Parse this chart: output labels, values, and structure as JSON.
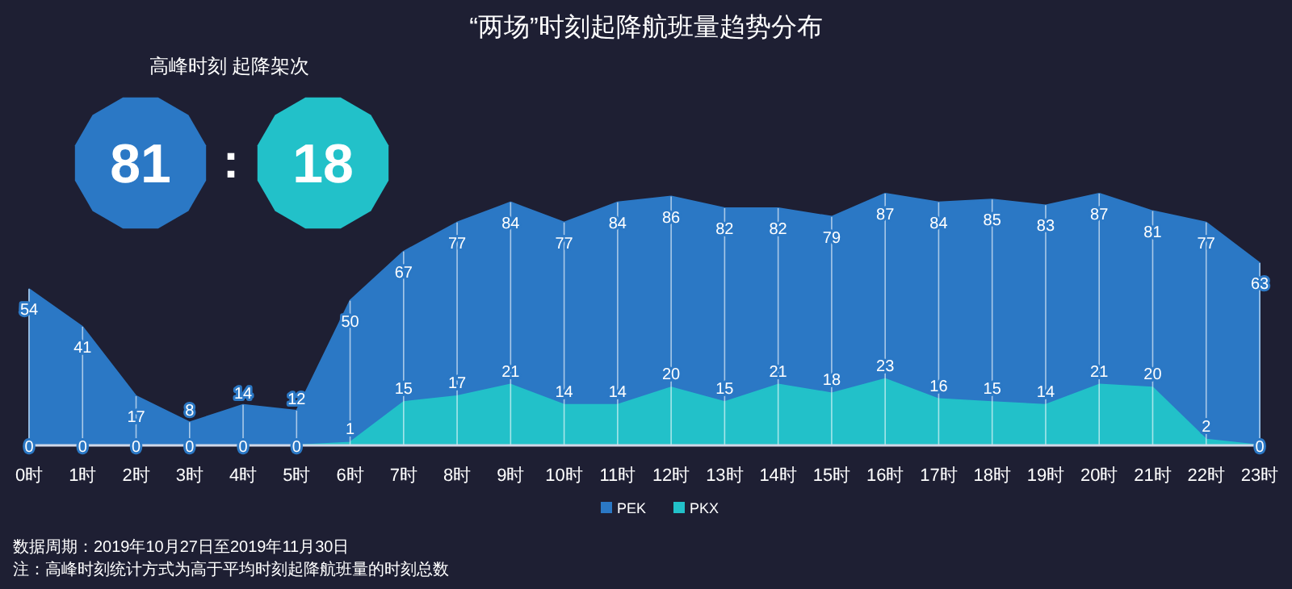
{
  "chart_data": {
    "type": "area",
    "title": "“两场”时刻起降航班量趋势分布",
    "subtitle": "高峰时刻 起降架次",
    "categories": [
      "0时",
      "1时",
      "2时",
      "3时",
      "4时",
      "5时",
      "6时",
      "7时",
      "8时",
      "9时",
      "10时",
      "11时",
      "12时",
      "13时",
      "14时",
      "15时",
      "16时",
      "17时",
      "18时",
      "19时",
      "20时",
      "21时",
      "22时",
      "23时"
    ],
    "series": [
      {
        "name": "PEK",
        "color": "#2b78c5",
        "values": [
          54,
          41,
          17,
          8,
          14,
          12,
          50,
          67,
          77,
          84,
          77,
          84,
          86,
          82,
          82,
          79,
          87,
          84,
          85,
          83,
          87,
          81,
          77,
          63
        ]
      },
      {
        "name": "PKX",
        "color": "#22c1c9",
        "values": [
          0,
          0,
          0,
          0,
          0,
          0,
          1,
          15,
          17,
          21,
          14,
          14,
          20,
          15,
          21,
          18,
          23,
          16,
          15,
          14,
          21,
          20,
          2,
          0
        ]
      }
    ],
    "data_labels": true,
    "grid": "x",
    "legend": "bottom",
    "annotations": [
      "81",
      ":",
      "18",
      "数据周期：2019年10月27日至2019年11月30日",
      "注：高峰时刻统计方式为高于平均时刻起降航班量的时刻总数"
    ]
  }
}
